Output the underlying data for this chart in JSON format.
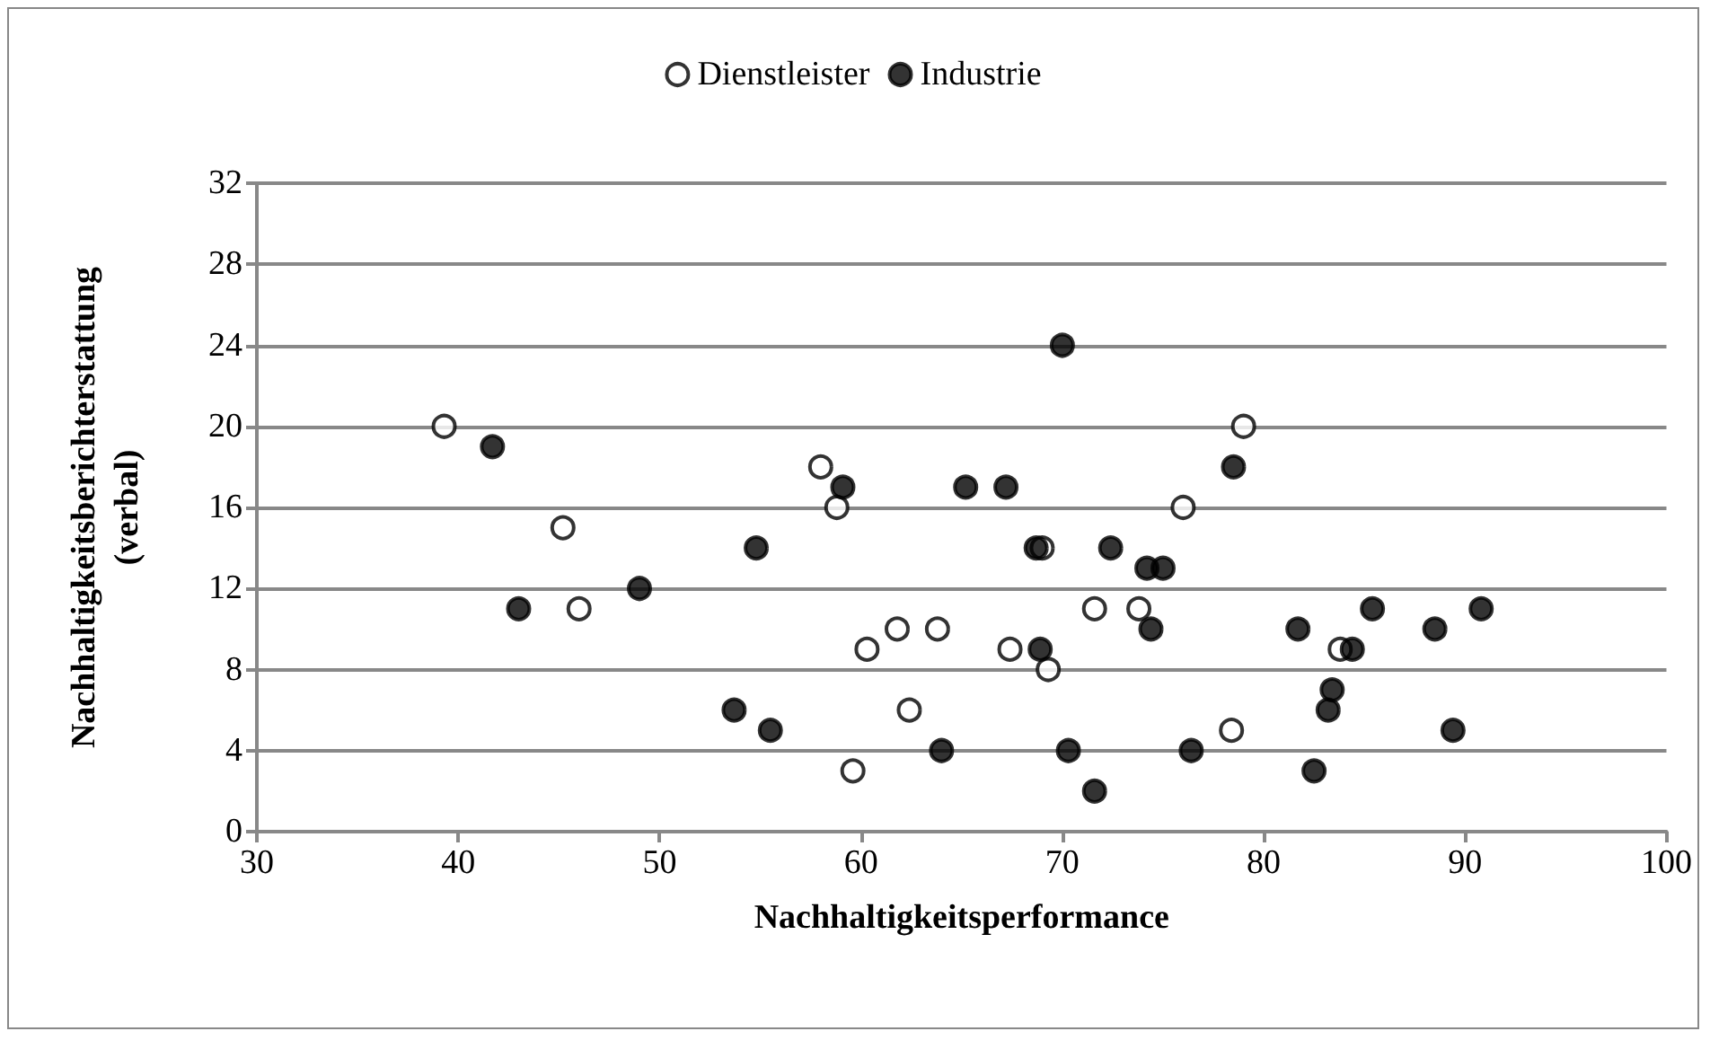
{
  "chart_data": {
    "type": "scatter",
    "xlabel": "Nachhaltigkeitsperformance",
    "ylabel": "Nachhaltigkeitsberichterstattung\n(verbal)",
    "xlim": [
      30,
      100
    ],
    "xticks": [
      30,
      40,
      50,
      60,
      70,
      80,
      90,
      100
    ],
    "ylim": [
      0,
      32
    ],
    "yticks": [
      0,
      4,
      8,
      12,
      16,
      20,
      24,
      28,
      32
    ],
    "grid": "y",
    "legend": "top",
    "marker": "circle",
    "series": [
      {
        "name": "Dienstleister",
        "color": "#ffffff",
        "x": [
          39.3,
          45.2,
          46,
          58,
          58.8,
          60.3,
          61.8,
          62.4,
          63.8,
          59.6,
          67.4,
          69,
          69.3,
          71.6,
          73.8,
          76,
          79,
          78.4,
          83.8
        ],
        "values": [
          20,
          15,
          11,
          18,
          16,
          9,
          10,
          6,
          10,
          3,
          9,
          14,
          8,
          11,
          11,
          16,
          20,
          5,
          9
        ]
      },
      {
        "name": "Industrie",
        "color": "#000000",
        "x": [
          41.7,
          43,
          49,
          54.8,
          53.7,
          55.5,
          59.1,
          65.2,
          67.2,
          68.7,
          70,
          68.9,
          70.3,
          64,
          71.6,
          72.4,
          74.2,
          75,
          74.4,
          76.4,
          78.5,
          81.7,
          82.5,
          83.2,
          83.4,
          84.4,
          85.4,
          88.5,
          89.4,
          90.8
        ],
        "values": [
          19,
          11,
          12,
          14,
          6,
          5,
          17,
          17,
          17,
          14,
          24,
          9,
          4,
          4,
          2,
          14,
          13,
          13,
          10,
          4,
          18,
          10,
          3,
          6,
          7,
          9,
          11,
          10,
          5,
          11
        ]
      }
    ]
  }
}
